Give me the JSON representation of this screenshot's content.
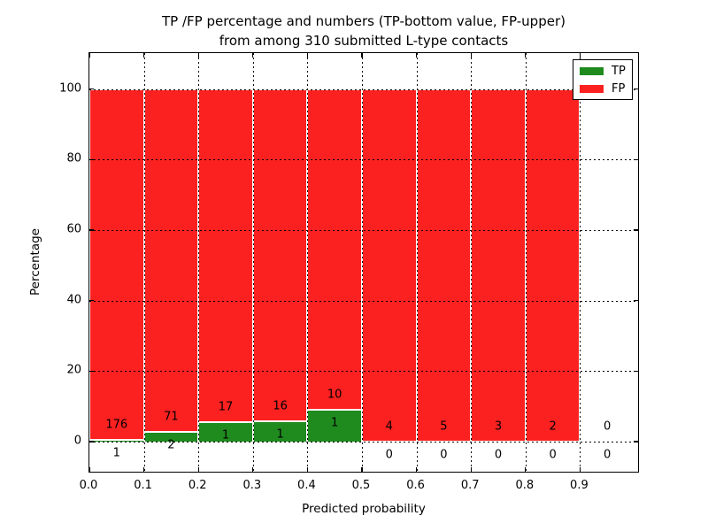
{
  "title": {
    "line1": "TP /FP percentage and numbers (TP-bottom value, FP-upper)",
    "line2": "from among 310 submitted L-type contacts"
  },
  "chart_data": {
    "type": "bar",
    "subtype": "stacked-percentage",
    "title": "TP /FP percentage and numbers (TP-bottom value, FP-upper)\nfrom among 310 submitted L-type contacts",
    "xlabel": "Predicted probability",
    "ylabel": "Percentage",
    "total_contacts": 310,
    "grid": true,
    "gridstyle": "dotted",
    "xlim": [
      0,
      1.01
    ],
    "ylim": [
      -9,
      110.3
    ],
    "xticks": {
      "values": [
        0,
        0.1,
        0.2,
        0.3,
        0.4,
        0.5,
        0.6,
        0.7,
        0.8,
        0.9
      ],
      "labels": [
        "0.0",
        "0.1",
        "0.2",
        "0.3",
        "0.4",
        "0.5",
        "0.6",
        "0.7",
        "0.8",
        "0.9"
      ]
    },
    "yticks": {
      "values": [
        0,
        20,
        40,
        60,
        80,
        100
      ],
      "labels": [
        "0",
        "20",
        "40",
        "60",
        "80",
        "100"
      ]
    },
    "categories": [
      "0.0-0.1",
      "0.1-0.2",
      "0.2-0.3",
      "0.3-0.4",
      "0.4-0.5",
      "0.5-0.6",
      "0.6-0.7",
      "0.7-0.8",
      "0.8-0.9",
      "0.9-1.0"
    ],
    "bins": [
      {
        "x0": 0.0,
        "x1": 0.1,
        "tp": 1,
        "fp": 176
      },
      {
        "x0": 0.1,
        "x1": 0.2,
        "tp": 2,
        "fp": 71
      },
      {
        "x0": 0.2,
        "x1": 0.3,
        "tp": 1,
        "fp": 17
      },
      {
        "x0": 0.3,
        "x1": 0.4,
        "tp": 1,
        "fp": 16
      },
      {
        "x0": 0.4,
        "x1": 0.5,
        "tp": 1,
        "fp": 10
      },
      {
        "x0": 0.5,
        "x1": 0.6,
        "tp": 0,
        "fp": 4
      },
      {
        "x0": 0.6,
        "x1": 0.7,
        "tp": 0,
        "fp": 5
      },
      {
        "x0": 0.7,
        "x1": 0.8,
        "tp": 0,
        "fp": 3
      },
      {
        "x0": 0.8,
        "x1": 0.9,
        "tp": 0,
        "fp": 2
      },
      {
        "x0": 0.9,
        "x1": 1.0,
        "tp": 0,
        "fp": 0
      }
    ],
    "series": [
      {
        "name": "TP",
        "values": [
          1,
          2,
          1,
          1,
          1,
          0,
          0,
          0,
          0,
          0
        ],
        "color": "#1f8b1f"
      },
      {
        "name": "FP",
        "values": [
          176,
          71,
          17,
          16,
          10,
          4,
          5,
          3,
          2,
          0
        ],
        "color": "#fb2120"
      }
    ],
    "legend": {
      "position": "upper-right",
      "entries": [
        {
          "label": "TP",
          "color": "#1f8b1f"
        },
        {
          "label": "FP",
          "color": "#fb2120"
        }
      ]
    }
  }
}
